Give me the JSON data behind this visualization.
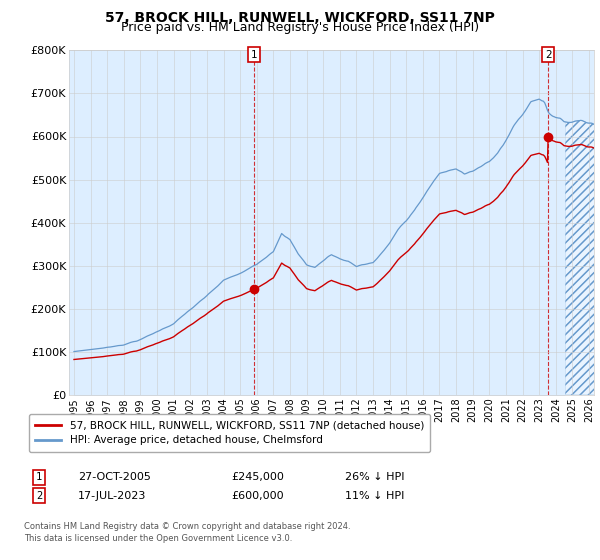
{
  "title": "57, BROCK HILL, RUNWELL, WICKFORD, SS11 7NP",
  "subtitle": "Price paid vs. HM Land Registry's House Price Index (HPI)",
  "legend_label_red": "57, BROCK HILL, RUNWELL, WICKFORD, SS11 7NP (detached house)",
  "legend_label_blue": "HPI: Average price, detached house, Chelmsford",
  "annotation1_date": "27-OCT-2005",
  "annotation1_price": "£245,000",
  "annotation1_hpi": "26% ↓ HPI",
  "annotation1_year": 2005.83,
  "annotation1_value": 245000,
  "annotation2_date": "17-JUL-2023",
  "annotation2_price": "£600,000",
  "annotation2_hpi": "11% ↓ HPI",
  "annotation2_year": 2023.54,
  "annotation2_value": 600000,
  "footer": "Contains HM Land Registry data © Crown copyright and database right 2024.\nThis data is licensed under the Open Government Licence v3.0.",
  "ylim": [
    0,
    800000
  ],
  "yticks": [
    0,
    100000,
    200000,
    300000,
    400000,
    500000,
    600000,
    700000,
    800000
  ],
  "ytick_labels": [
    "£0",
    "£100K",
    "£200K",
    "£300K",
    "£400K",
    "£500K",
    "£600K",
    "£700K",
    "£800K"
  ],
  "color_red": "#cc0000",
  "color_blue": "#6699cc",
  "color_blue_fill": "#ddeeff",
  "background_color": "#ffffff",
  "grid_color": "#cccccc",
  "title_fontsize": 10,
  "subtitle_fontsize": 9,
  "xlim_left": 1994.7,
  "xlim_right": 2026.3,
  "hatch_start": 2024.5
}
